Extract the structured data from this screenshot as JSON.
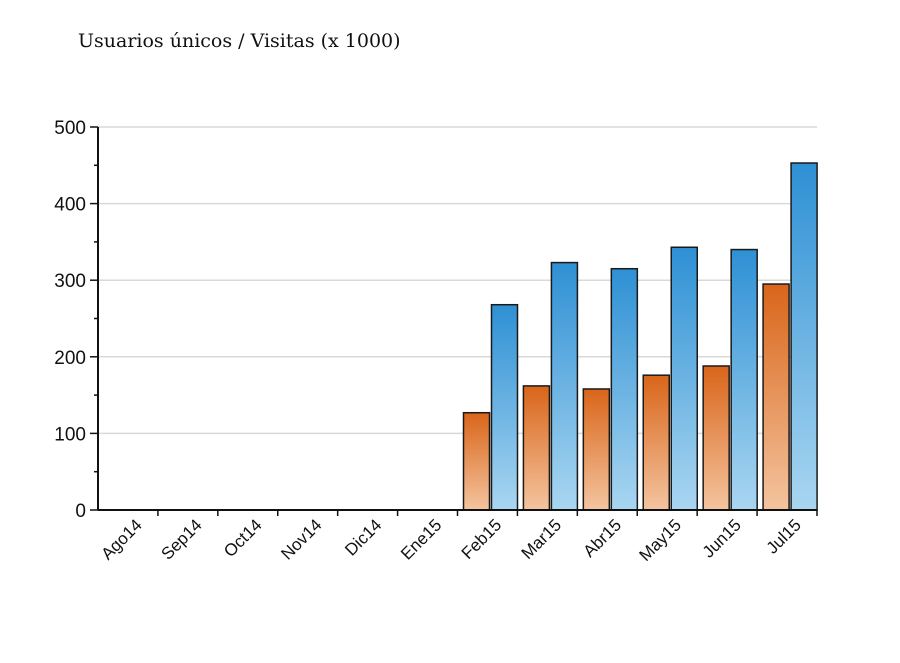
{
  "chart_data": {
    "type": "bar",
    "title": "Usuarios únicos  / Visitas (x 1000)",
    "xlabel": "",
    "ylabel": "",
    "categories": [
      "Ago14",
      "Sep14",
      "Oct14",
      "Nov14",
      "Dic14",
      "Ene15",
      "Feb15",
      "Mar15",
      "Abr15",
      "May15",
      "Jun15",
      "Jul15"
    ],
    "series": [
      {
        "values": [
          0,
          0,
          0,
          0,
          0,
          0,
          127,
          162,
          158,
          176,
          188,
          295
        ],
        "color": "#e07a30"
      },
      {
        "values": [
          0,
          0,
          0,
          0,
          0,
          0,
          268,
          323,
          315,
          343,
          340,
          453
        ],
        "color": "#3a9ad9"
      }
    ],
    "ylim": [
      0,
      500
    ],
    "yticks": [
      0,
      100,
      200,
      300,
      400,
      500
    ],
    "grid": true,
    "legend": "none"
  }
}
